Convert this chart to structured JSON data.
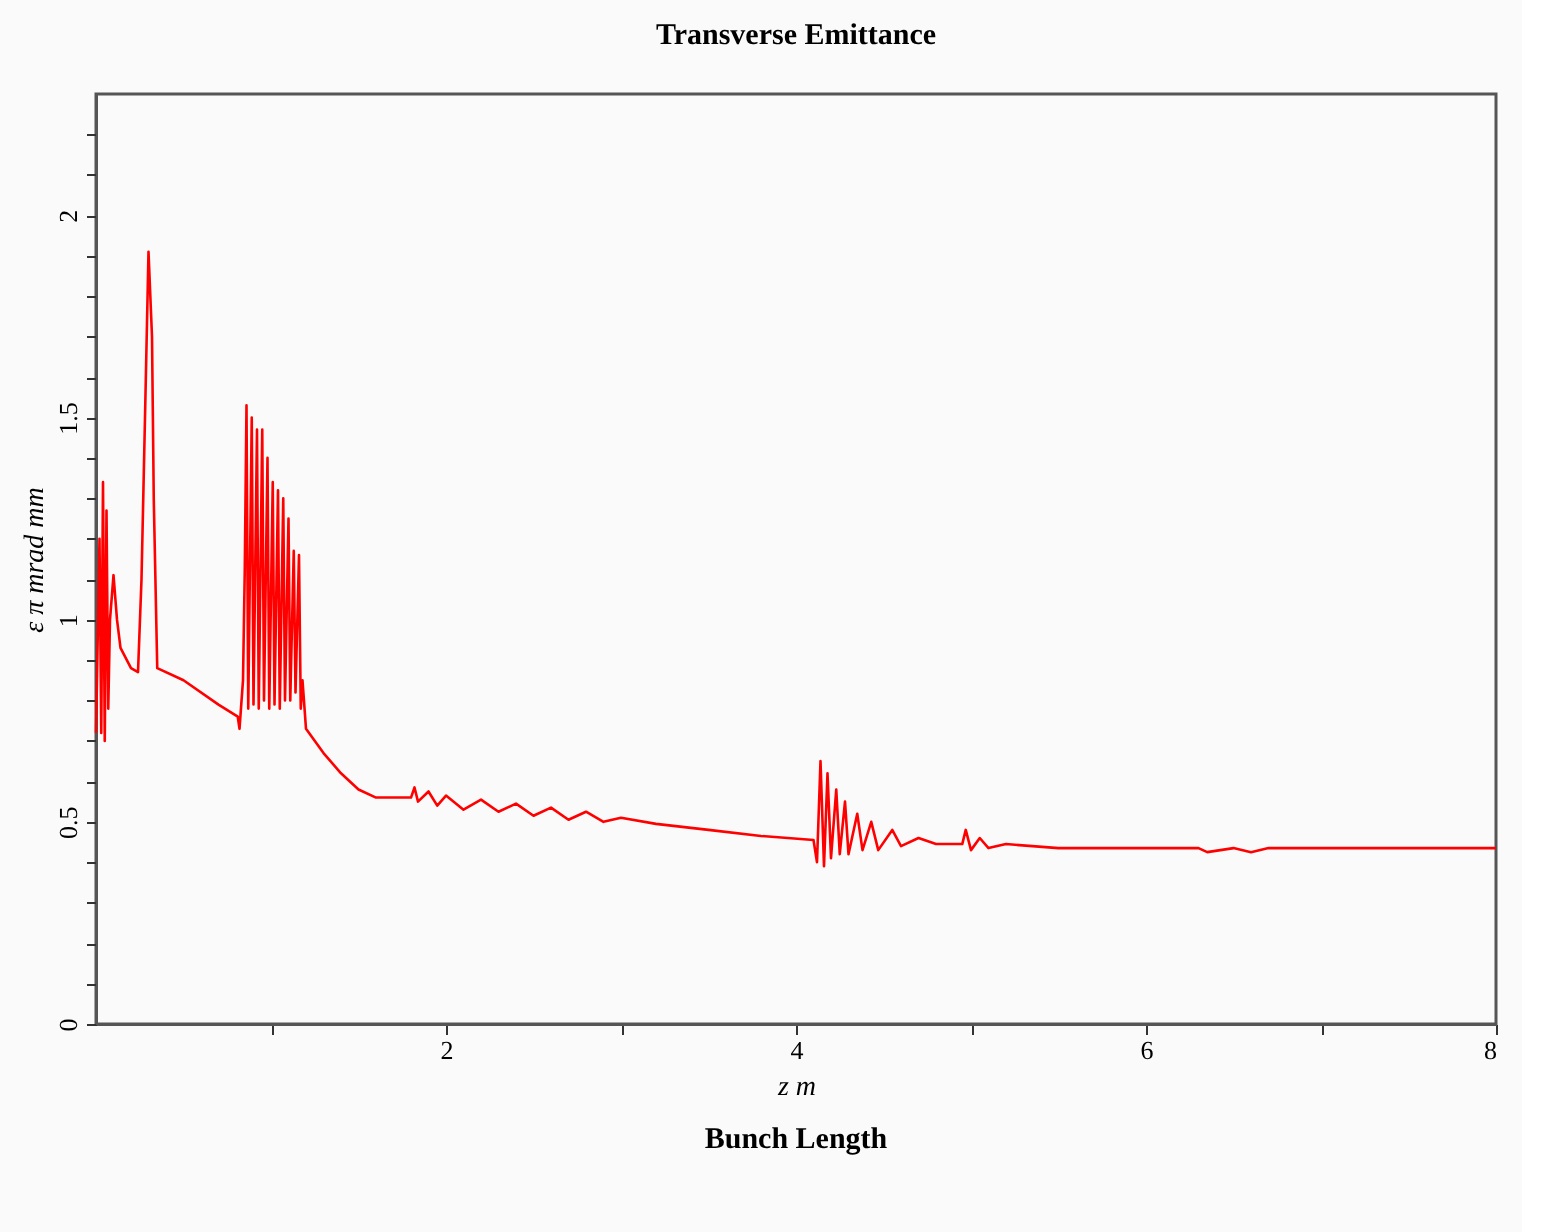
{
  "chart_data": {
    "type": "line",
    "title": "Transverse Emittance",
    "xlabel": "z m",
    "ylabel": "ε π mrad mm",
    "annotations": [
      "Bunch Length"
    ],
    "xlim": [
      0,
      8
    ],
    "ylim": [
      0,
      2.3
    ],
    "xticks": [
      {
        "value": 1,
        "label": null
      },
      2,
      {
        "value": 3,
        "label": null
      },
      4,
      {
        "value": 5,
        "label": null
      },
      6,
      {
        "value": 7,
        "label": null
      },
      8
    ],
    "yticks": [
      0,
      {
        "value": 0.1,
        "label": null
      },
      {
        "value": 0.2,
        "label": null
      },
      {
        "value": 0.3,
        "label": null
      },
      {
        "value": 0.4,
        "label": null
      },
      0.5,
      {
        "value": 0.6,
        "label": null
      },
      {
        "value": 0.7,
        "label": null
      },
      {
        "value": 0.8,
        "label": null
      },
      {
        "value": 0.9,
        "label": null
      },
      1,
      {
        "value": 1.1,
        "label": null
      },
      {
        "value": 1.2,
        "label": null
      },
      {
        "value": 1.3,
        "label": null
      },
      {
        "value": 1.4,
        "label": null
      },
      1.5,
      {
        "value": 1.6,
        "label": null
      },
      {
        "value": 1.7,
        "label": null
      },
      {
        "value": 1.8,
        "label": null
      },
      {
        "value": 1.9,
        "label": null
      },
      2,
      {
        "value": 2.1,
        "label": null
      },
      {
        "value": 2.2,
        "label": null
      }
    ],
    "grid": false,
    "marker": "none",
    "line_style": "solid",
    "series": [
      {
        "color": "#ff0000",
        "x": [
          0.0,
          0.02,
          0.03,
          0.04,
          0.05,
          0.06,
          0.07,
          0.08,
          0.1,
          0.12,
          0.14,
          0.2,
          0.24,
          0.26,
          0.28,
          0.3,
          0.32,
          0.33,
          0.35,
          0.5,
          0.7,
          0.81,
          0.82,
          0.84,
          0.85,
          0.86,
          0.87,
          0.89,
          0.9,
          0.92,
          0.93,
          0.95,
          0.96,
          0.98,
          0.99,
          1.01,
          1.02,
          1.04,
          1.05,
          1.07,
          1.08,
          1.1,
          1.11,
          1.13,
          1.14,
          1.16,
          1.17,
          1.18,
          1.2,
          1.3,
          1.4,
          1.5,
          1.6,
          1.8,
          1.82,
          1.84,
          1.9,
          1.95,
          2.0,
          2.1,
          2.2,
          2.3,
          2.4,
          2.5,
          2.6,
          2.7,
          2.8,
          2.9,
          3.0,
          3.2,
          3.5,
          3.8,
          4.1,
          4.12,
          4.14,
          4.16,
          4.18,
          4.2,
          4.23,
          4.25,
          4.28,
          4.3,
          4.35,
          4.38,
          4.43,
          4.47,
          4.55,
          4.6,
          4.7,
          4.8,
          4.95,
          4.97,
          5.0,
          5.05,
          5.1,
          5.2,
          5.5,
          6.3,
          6.35,
          6.5,
          6.6,
          6.7,
          8.0
        ],
        "values": [
          0.72,
          1.2,
          0.72,
          1.34,
          0.7,
          1.27,
          0.78,
          1.0,
          1.11,
          1.0,
          0.93,
          0.88,
          0.87,
          1.1,
          1.5,
          1.91,
          1.7,
          1.3,
          0.88,
          0.85,
          0.79,
          0.76,
          0.73,
          0.85,
          1.12,
          1.53,
          0.78,
          1.5,
          0.79,
          1.47,
          0.78,
          1.47,
          0.8,
          1.4,
          0.78,
          1.34,
          0.79,
          1.32,
          0.78,
          1.3,
          0.8,
          1.25,
          0.8,
          1.17,
          0.82,
          1.16,
          0.78,
          0.85,
          0.73,
          0.67,
          0.62,
          0.58,
          0.56,
          0.56,
          0.585,
          0.55,
          0.575,
          0.54,
          0.565,
          0.53,
          0.555,
          0.525,
          0.545,
          0.515,
          0.535,
          0.505,
          0.525,
          0.5,
          0.51,
          0.495,
          0.48,
          0.465,
          0.455,
          0.4,
          0.65,
          0.39,
          0.62,
          0.41,
          0.58,
          0.42,
          0.55,
          0.42,
          0.52,
          0.43,
          0.5,
          0.43,
          0.48,
          0.44,
          0.46,
          0.445,
          0.445,
          0.48,
          0.43,
          0.46,
          0.435,
          0.445,
          0.435,
          0.435,
          0.425,
          0.435,
          0.425,
          0.435,
          0.435
        ]
      }
    ]
  }
}
